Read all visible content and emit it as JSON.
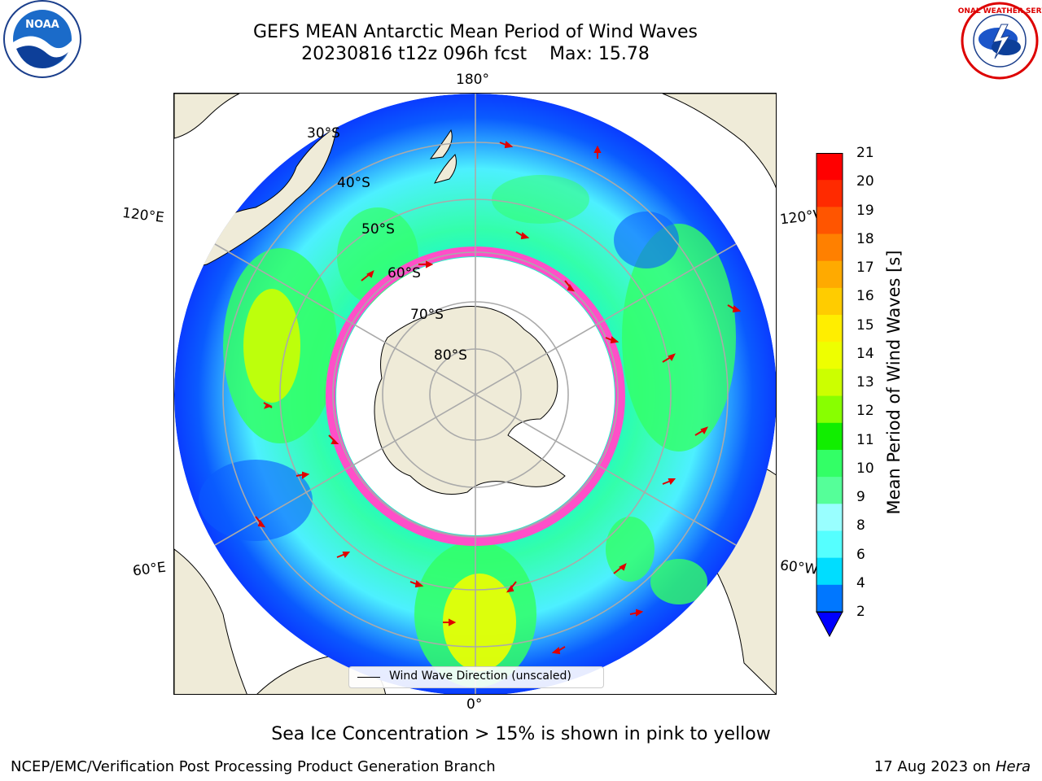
{
  "title": {
    "line1": "GEFS MEAN Antarctic Mean Period of Wind Waves",
    "line2": "20230816 t12z 096h fcst    Max: 15.78"
  },
  "logos": {
    "left": "noaa-logo",
    "left_text": "NOAA",
    "right": "nws-logo",
    "right_text": "NATIONAL WEATHER SERVICE"
  },
  "map": {
    "projection": "south-polar-stereographic",
    "longitude_labels": {
      "top": "180°",
      "bottom": "0°",
      "left_upper": "120°E",
      "left_lower": "60°E",
      "right_upper": "120°W",
      "right_lower": "60°W"
    },
    "latitude_labels": [
      "30°S",
      "40°S",
      "50°S",
      "60°S",
      "70°S",
      "80°S"
    ],
    "legend": "Wind Wave Direction (unscaled)",
    "colors": {
      "ocean_low": "#0a3cff",
      "ocean_mid": "#00eaff",
      "ocean_high": "#31ff63",
      "peak": "#ffff00",
      "land": "#efebd8",
      "sea_ice": "#ff4fc8",
      "arrows": "#ff0000"
    }
  },
  "colorbar": {
    "label": "Mean Period of Wind Waves [s]",
    "ticks": [
      "21",
      "20",
      "19",
      "18",
      "17",
      "16",
      "15",
      "14",
      "13",
      "12",
      "11",
      "10",
      "9",
      "8",
      "6",
      "4",
      "2"
    ],
    "colors_top_to_bottom": [
      "#ff0000",
      "#ff2a00",
      "#ff5500",
      "#ff8000",
      "#ffaa00",
      "#ffcc00",
      "#ffee00",
      "#eeff00",
      "#ccff00",
      "#88ff00",
      "#11ee00",
      "#33ff66",
      "#55ff99",
      "#99ffff",
      "#55ffff",
      "#00ddff",
      "#0077ff",
      "#0000ff"
    ]
  },
  "note": "Sea Ice Concentration > 15% is shown in pink to yellow",
  "footer": {
    "left": "NCEP/EMC/Verification Post Processing Product Generation Branch",
    "right_date": "17 Aug 2023 on",
    "right_host": "Hera"
  }
}
